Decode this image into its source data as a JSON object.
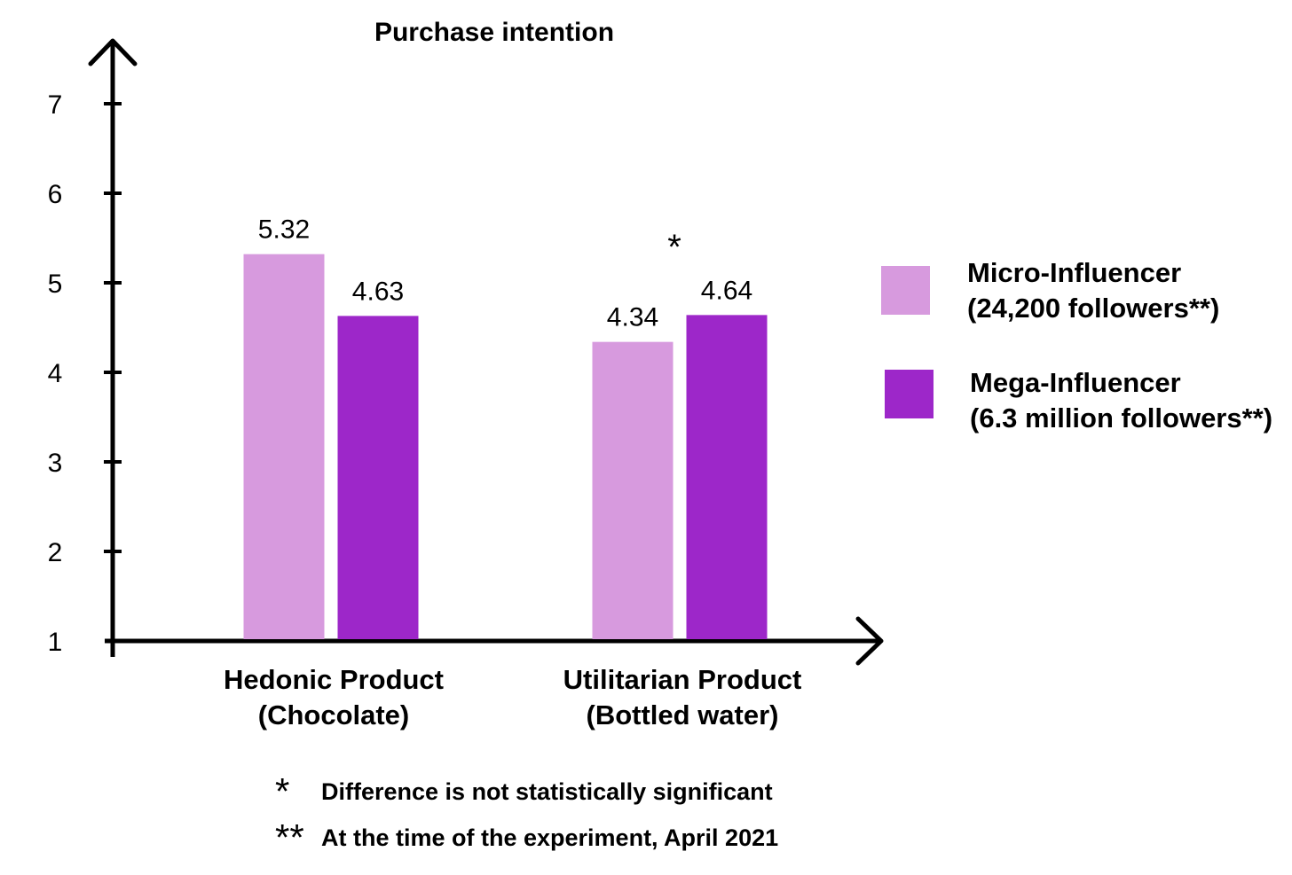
{
  "chart_data": {
    "type": "bar",
    "title": "Purchase intention",
    "categories": [
      [
        "Hedonic Product",
        "(Chocolate)"
      ],
      [
        "Utilitarian Product",
        "(Bottled water)"
      ]
    ],
    "series": [
      {
        "name": "Micro-Influencer (24,200 followers**)",
        "legend_lines": [
          "Micro-Influencer",
          "(24,200 followers**)"
        ],
        "color": "#d79ade",
        "values": [
          5.32,
          4.34
        ],
        "labels": [
          "5.32",
          "4.34"
        ]
      },
      {
        "name": "Mega-Influencer (6.3 million followers**)",
        "legend_lines": [
          "Mega-Influencer",
          "(6.3 million followers**)"
        ],
        "color": "#9d27c9",
        "values": [
          4.63,
          4.64
        ],
        "labels": [
          "4.63",
          "4.64"
        ]
      }
    ],
    "yticks": [
      "1",
      "2",
      "3",
      "4",
      "5",
      "6",
      "7"
    ],
    "ylim": [
      1,
      7
    ],
    "annotations": [
      {
        "text": "*",
        "category_index": 1
      }
    ],
    "grid": false,
    "legend_position": "right"
  },
  "footnotes": [
    {
      "mark": "*",
      "text": "Difference is not statistically significant"
    },
    {
      "mark": "**",
      "text": "At the time of the experiment, April 2021"
    }
  ]
}
